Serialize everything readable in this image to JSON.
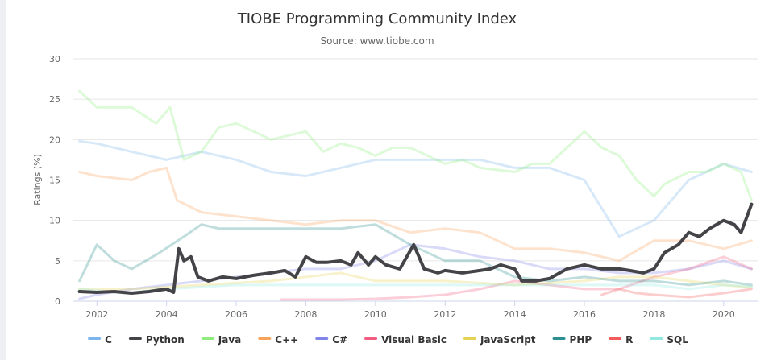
{
  "chart_data": {
    "type": "line",
    "title": "TIOBE Programming Community Index",
    "subtitle": "Source: www.tiobe.com",
    "xlabel": "",
    "ylabel": "Ratings (%)",
    "xlim": [
      2001.3,
      2021.0
    ],
    "ylim": [
      0,
      30
    ],
    "x_ticks": [
      "2002",
      "2004",
      "2006",
      "2008",
      "2010",
      "2012",
      "2014",
      "2016",
      "2018",
      "2020"
    ],
    "y_ticks": [
      "0",
      "5",
      "10",
      "15",
      "20",
      "25",
      "30"
    ],
    "grid": true,
    "legend_position": "bottom",
    "highlighted_series": "Python",
    "series": [
      {
        "name": "C",
        "color": "#7cb5ec",
        "points": [
          [
            2001.5,
            19.8
          ],
          [
            2002,
            19.5
          ],
          [
            2003,
            18.5
          ],
          [
            2004,
            17.5
          ],
          [
            2005,
            18.5
          ],
          [
            2006,
            17.5
          ],
          [
            2007,
            16
          ],
          [
            2008,
            15.5
          ],
          [
            2009,
            16.5
          ],
          [
            2010,
            17.5
          ],
          [
            2011,
            17.5
          ],
          [
            2012,
            17.5
          ],
          [
            2013,
            17.5
          ],
          [
            2014,
            16.5
          ],
          [
            2015,
            16.5
          ],
          [
            2016,
            15
          ],
          [
            2017,
            8
          ],
          [
            2018,
            10
          ],
          [
            2019,
            15
          ],
          [
            2020,
            17
          ],
          [
            2020.8,
            16
          ]
        ]
      },
      {
        "name": "Python",
        "color": "#434348",
        "points": [
          [
            2001.5,
            1.2
          ],
          [
            2002,
            1.1
          ],
          [
            2002.5,
            1.2
          ],
          [
            2003,
            1.0
          ],
          [
            2003.5,
            1.2
          ],
          [
            2004,
            1.5
          ],
          [
            2004.2,
            1.1
          ],
          [
            2004.35,
            6.5
          ],
          [
            2004.5,
            5.0
          ],
          [
            2004.7,
            5.5
          ],
          [
            2004.9,
            3.0
          ],
          [
            2005.2,
            2.5
          ],
          [
            2005.6,
            3.0
          ],
          [
            2006,
            2.8
          ],
          [
            2006.5,
            3.2
          ],
          [
            2007,
            3.5
          ],
          [
            2007.4,
            3.8
          ],
          [
            2007.7,
            3.0
          ],
          [
            2008,
            5.5
          ],
          [
            2008.3,
            4.8
          ],
          [
            2008.6,
            4.8
          ],
          [
            2009,
            5.0
          ],
          [
            2009.3,
            4.5
          ],
          [
            2009.5,
            6.0
          ],
          [
            2009.8,
            4.5
          ],
          [
            2010,
            5.5
          ],
          [
            2010.3,
            4.5
          ],
          [
            2010.7,
            4.0
          ],
          [
            2011.1,
            7.0
          ],
          [
            2011.4,
            4.0
          ],
          [
            2011.8,
            3.5
          ],
          [
            2012,
            3.8
          ],
          [
            2012.5,
            3.5
          ],
          [
            2013,
            3.8
          ],
          [
            2013.3,
            4.0
          ],
          [
            2013.6,
            4.5
          ],
          [
            2014,
            4.0
          ],
          [
            2014.2,
            2.5
          ],
          [
            2014.6,
            2.5
          ],
          [
            2015,
            2.8
          ],
          [
            2015.5,
            4.0
          ],
          [
            2016,
            4.5
          ],
          [
            2016.5,
            4.0
          ],
          [
            2017,
            4.0
          ],
          [
            2017.3,
            3.8
          ],
          [
            2017.7,
            3.5
          ],
          [
            2018,
            4.0
          ],
          [
            2018.3,
            6.0
          ],
          [
            2018.7,
            7.0
          ],
          [
            2019,
            8.5
          ],
          [
            2019.3,
            8.0
          ],
          [
            2019.6,
            9.0
          ],
          [
            2020,
            10.0
          ],
          [
            2020.3,
            9.5
          ],
          [
            2020.5,
            8.5
          ],
          [
            2020.8,
            12.0
          ]
        ]
      },
      {
        "name": "Java",
        "color": "#90ed7d",
        "points": [
          [
            2001.5,
            26
          ],
          [
            2002,
            24
          ],
          [
            2003,
            24
          ],
          [
            2003.7,
            22
          ],
          [
            2004.1,
            24
          ],
          [
            2004.5,
            17.5
          ],
          [
            2005,
            18.5
          ],
          [
            2005.5,
            21.5
          ],
          [
            2006,
            22
          ],
          [
            2006.5,
            21
          ],
          [
            2007,
            20
          ],
          [
            2008,
            21
          ],
          [
            2008.5,
            18.5
          ],
          [
            2009,
            19.5
          ],
          [
            2009.5,
            19
          ],
          [
            2010,
            18
          ],
          [
            2010.5,
            19
          ],
          [
            2011,
            19
          ],
          [
            2012,
            17
          ],
          [
            2012.5,
            17.5
          ],
          [
            2013,
            16.5
          ],
          [
            2014,
            16
          ],
          [
            2014.5,
            17
          ],
          [
            2015,
            17
          ],
          [
            2015.5,
            19
          ],
          [
            2016,
            21
          ],
          [
            2016.5,
            19
          ],
          [
            2017,
            18
          ],
          [
            2017.5,
            15
          ],
          [
            2018,
            13
          ],
          [
            2018.3,
            14.5
          ],
          [
            2019,
            16
          ],
          [
            2019.5,
            16
          ],
          [
            2020,
            17
          ],
          [
            2020.5,
            16
          ],
          [
            2020.8,
            12.5
          ]
        ]
      },
      {
        "name": "C++",
        "color": "#f7a35c",
        "points": [
          [
            2001.5,
            16
          ],
          [
            2002,
            15.5
          ],
          [
            2003,
            15
          ],
          [
            2003.5,
            16
          ],
          [
            2004,
            16.5
          ],
          [
            2004.3,
            12.5
          ],
          [
            2005,
            11
          ],
          [
            2006,
            10.5
          ],
          [
            2007,
            10
          ],
          [
            2008,
            9.5
          ],
          [
            2009,
            10
          ],
          [
            2010,
            10
          ],
          [
            2011,
            8.5
          ],
          [
            2012,
            9
          ],
          [
            2013,
            8.5
          ],
          [
            2014,
            6.5
          ],
          [
            2015,
            6.5
          ],
          [
            2016,
            6
          ],
          [
            2017,
            5
          ],
          [
            2018,
            7.5
          ],
          [
            2019,
            7.5
          ],
          [
            2020,
            6.5
          ],
          [
            2020.8,
            7.5
          ]
        ]
      },
      {
        "name": "C#",
        "color": "#8085e9",
        "points": [
          [
            2001.5,
            0.3
          ],
          [
            2002,
            0.8
          ],
          [
            2003,
            1.5
          ],
          [
            2004,
            2
          ],
          [
            2005,
            2.5
          ],
          [
            2006,
            3
          ],
          [
            2007,
            3.5
          ],
          [
            2008,
            4
          ],
          [
            2009,
            4
          ],
          [
            2010,
            5
          ],
          [
            2011,
            7
          ],
          [
            2012,
            6.5
          ],
          [
            2013,
            5.5
          ],
          [
            2014,
            5
          ],
          [
            2015,
            4
          ],
          [
            2016,
            4
          ],
          [
            2017,
            3.5
          ],
          [
            2018,
            3.5
          ],
          [
            2019,
            4
          ],
          [
            2020,
            5
          ],
          [
            2020.8,
            4
          ]
        ]
      },
      {
        "name": "Visual Basic",
        "color": "#f15c80",
        "points": [
          [
            2007.3,
            0.2
          ],
          [
            2009,
            0.2
          ],
          [
            2010,
            0.3
          ],
          [
            2011,
            0.5
          ],
          [
            2012,
            0.8
          ],
          [
            2013,
            1.5
          ],
          [
            2014,
            2.5
          ],
          [
            2015,
            2
          ],
          [
            2016,
            1.5
          ],
          [
            2017,
            1.5
          ],
          [
            2018,
            3
          ],
          [
            2019,
            4
          ],
          [
            2020,
            5.5
          ],
          [
            2020.8,
            4
          ]
        ]
      },
      {
        "name": "JavaScript",
        "color": "#e4d354",
        "points": [
          [
            2001.5,
            1.5
          ],
          [
            2003,
            1.5
          ],
          [
            2005,
            2
          ],
          [
            2007,
            2.5
          ],
          [
            2009,
            3.5
          ],
          [
            2010,
            2.5
          ],
          [
            2012,
            2.5
          ],
          [
            2014,
            2
          ],
          [
            2016,
            2.5
          ],
          [
            2017,
            3
          ],
          [
            2018,
            3
          ],
          [
            2019,
            2.5
          ],
          [
            2020,
            2
          ],
          [
            2020.8,
            1.7
          ]
        ]
      },
      {
        "name": "PHP",
        "color": "#2b908f",
        "points": [
          [
            2001.5,
            2.5
          ],
          [
            2002,
            7
          ],
          [
            2002.5,
            5
          ],
          [
            2003,
            4
          ],
          [
            2003.8,
            6
          ],
          [
            2004.5,
            8
          ],
          [
            2005,
            9.5
          ],
          [
            2005.5,
            9
          ],
          [
            2006,
            9
          ],
          [
            2007,
            9
          ],
          [
            2008,
            9
          ],
          [
            2009,
            9
          ],
          [
            2010,
            9.5
          ],
          [
            2011,
            7
          ],
          [
            2012,
            5
          ],
          [
            2013,
            5
          ],
          [
            2014,
            3
          ],
          [
            2015,
            2.5
          ],
          [
            2016,
            3
          ],
          [
            2017,
            2.5
          ],
          [
            2018,
            2.5
          ],
          [
            2019,
            2
          ],
          [
            2020,
            2.5
          ],
          [
            2020.8,
            2
          ]
        ]
      },
      {
        "name": "R",
        "color": "#f45b5b",
        "points": [
          [
            2016.5,
            0.8
          ],
          [
            2017,
            1.5
          ],
          [
            2017.5,
            1
          ],
          [
            2018,
            0.8
          ],
          [
            2019,
            0.5
          ],
          [
            2020,
            1
          ],
          [
            2020.8,
            1.5
          ]
        ]
      },
      {
        "name": "SQL",
        "color": "#91e8e1",
        "points": [
          [
            2001.5,
            1.5
          ],
          [
            2002.8,
            1
          ],
          [
            2004,
            1.5
          ],
          [
            2006,
            2
          ],
          [
            2008,
            2
          ],
          [
            2010,
            2
          ],
          [
            2012,
            2
          ],
          [
            2014,
            2
          ],
          [
            2016,
            2
          ],
          [
            2018,
            2
          ],
          [
            2019,
            1.5
          ],
          [
            2020,
            2
          ],
          [
            2020.8,
            1.8
          ]
        ]
      }
    ]
  }
}
